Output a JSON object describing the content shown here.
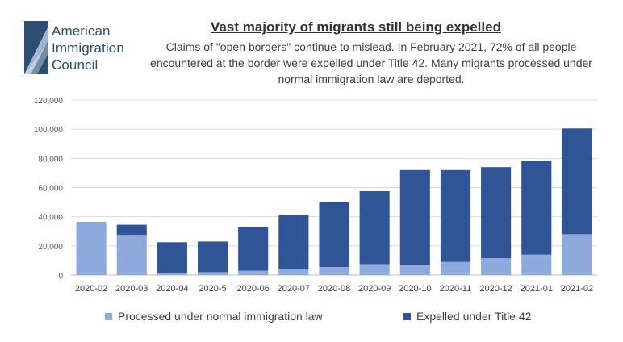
{
  "header": {
    "logo_lines": [
      "American",
      "Immigration",
      "Council"
    ],
    "title": "Vast majority of migrants still being expelled",
    "subtitle": "Claims of \"open borders\" continue to mislead. In February 2021, 72% of all people encountered at the border were expelled under Title 42. Many migrants processed under normal immigration law are deported."
  },
  "colors": {
    "processed": "#8eaadc",
    "expelled": "#2f5597",
    "grid": "#d9d9d9",
    "logo": "#2e4d73"
  },
  "chart_data": {
    "type": "bar",
    "stacked": true,
    "categories": [
      "2020-02",
      "2020-03",
      "2020-04",
      "2020-5",
      "2020-06",
      "2020-07",
      "2020-08",
      "2020-09",
      "2020-10",
      "2020-11",
      "2020-12",
      "2021-01",
      "2021-02"
    ],
    "series": [
      {
        "name": "Processed under normal immigration law",
        "values": [
          36500,
          27500,
          1500,
          2000,
          3000,
          4000,
          5500,
          7500,
          7000,
          9000,
          11500,
          14000,
          28000
        ]
      },
      {
        "name": "Expelled under Title 42",
        "values": [
          0,
          7000,
          21000,
          21000,
          30000,
          37000,
          44500,
          50000,
          65000,
          63000,
          62500,
          64500,
          72500
        ]
      }
    ],
    "ylim": [
      0,
      120000
    ],
    "yticks": [
      0,
      20000,
      40000,
      60000,
      80000,
      100000,
      120000
    ],
    "ytick_labels": [
      "0",
      "20,000",
      "40,000",
      "60,000",
      "80,000",
      "100,000",
      "120,000"
    ],
    "xlabel": "",
    "ylabel": "",
    "legend_position": "bottom"
  }
}
